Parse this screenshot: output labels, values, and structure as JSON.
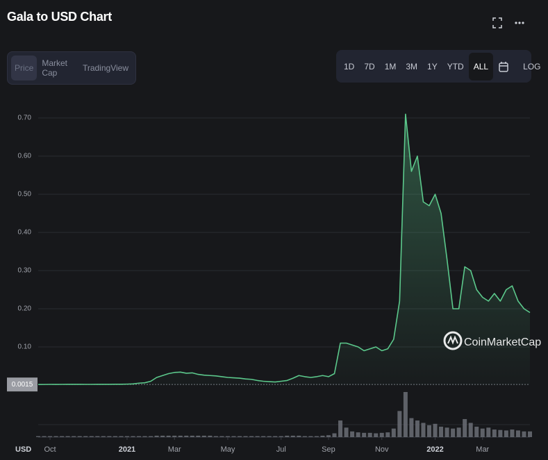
{
  "header": {
    "title": "Gala to USD Chart"
  },
  "tabs": [
    "Price",
    "Market Cap",
    "TradingView"
  ],
  "ranges": [
    "1D",
    "7D",
    "1M",
    "3M",
    "1Y",
    "YTD",
    "ALL"
  ],
  "scale_button": "LOG",
  "chart_data": {
    "type": "area",
    "color": "#5cc98c",
    "grid": true,
    "watermark": "CoinMarketCap",
    "currency_label": "USD",
    "ylim": [
      0,
      0.75
    ],
    "yticks": [
      {
        "value": 0.1,
        "label": "0.10"
      },
      {
        "value": 0.2,
        "label": "0.20"
      },
      {
        "value": 0.3,
        "label": "0.30"
      },
      {
        "value": 0.4,
        "label": "0.40"
      },
      {
        "value": 0.5,
        "label": "0.50"
      },
      {
        "value": 0.6,
        "label": "0.60"
      },
      {
        "value": 0.7,
        "label": "0.70"
      }
    ],
    "last_price_marker": {
      "value": 0.0015,
      "label": "0.0015"
    },
    "categories": [
      null,
      null,
      "Oct",
      null,
      null,
      null,
      null,
      null,
      null,
      null,
      null,
      null,
      null,
      null,
      null,
      "2021",
      null,
      null,
      null,
      null,
      null,
      null,
      null,
      "Mar",
      null,
      null,
      null,
      null,
      null,
      null,
      null,
      null,
      "May",
      null,
      null,
      null,
      null,
      null,
      null,
      null,
      null,
      "Jul",
      null,
      null,
      null,
      null,
      null,
      null,
      null,
      "Sep",
      null,
      null,
      null,
      null,
      null,
      null,
      null,
      null,
      "Nov",
      null,
      null,
      null,
      null,
      null,
      null,
      null,
      null,
      "2022",
      null,
      null,
      null,
      null,
      null,
      null,
      null,
      "Mar",
      null,
      null,
      null,
      null,
      null,
      null,
      null,
      null
    ],
    "values": [
      0.0015,
      0.0016,
      0.0018,
      0.0017,
      0.0018,
      0.0019,
      0.002,
      0.0019,
      0.0018,
      0.0018,
      0.0019,
      0.002,
      0.002,
      0.0021,
      0.0022,
      0.0025,
      0.003,
      0.005,
      0.006,
      0.01,
      0.02,
      0.025,
      0.03,
      0.033,
      0.034,
      0.031,
      0.032,
      0.028,
      0.026,
      0.025,
      0.024,
      0.022,
      0.02,
      0.019,
      0.018,
      0.016,
      0.015,
      0.012,
      0.01,
      0.009,
      0.008,
      0.01,
      0.012,
      0.018,
      0.025,
      0.022,
      0.02,
      0.022,
      0.025,
      0.022,
      0.03,
      0.11,
      0.11,
      0.105,
      0.1,
      0.09,
      0.095,
      0.1,
      0.09,
      0.095,
      0.12,
      0.22,
      0.71,
      0.56,
      0.6,
      0.48,
      0.47,
      0.5,
      0.45,
      0.33,
      0.2,
      0.2,
      0.31,
      0.3,
      0.25,
      0.23,
      0.22,
      0.24,
      0.22,
      0.25,
      0.26,
      0.22,
      0.2,
      0.19
    ],
    "volume": [
      2,
      2,
      2,
      2,
      2,
      2,
      2,
      2,
      2,
      2,
      2,
      2,
      2,
      2,
      2,
      2,
      2,
      2,
      2,
      2,
      3,
      3,
      3,
      3,
      3,
      3,
      3,
      3,
      3,
      3,
      2,
      2,
      2,
      2,
      2,
      2,
      2,
      2,
      2,
      2,
      2,
      2,
      3,
      3,
      3,
      2,
      2,
      2,
      3,
      4,
      8,
      35,
      20,
      12,
      10,
      9,
      9,
      8,
      9,
      10,
      18,
      55,
      95,
      40,
      35,
      30,
      25,
      28,
      22,
      20,
      18,
      20,
      38,
      30,
      22,
      18,
      20,
      16,
      15,
      14,
      16,
      14,
      12,
      12
    ]
  }
}
